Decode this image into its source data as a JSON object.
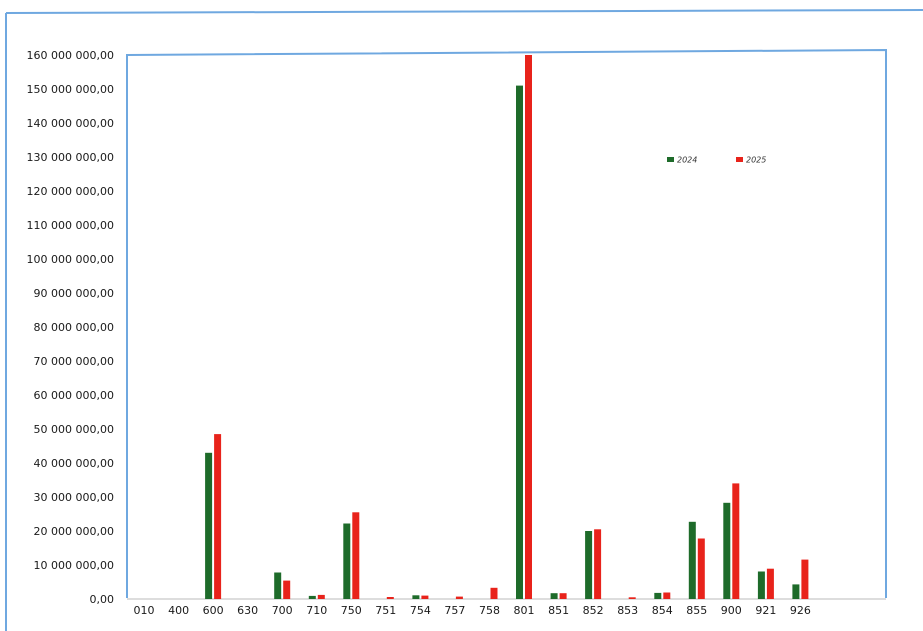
{
  "chart_data": {
    "type": "bar",
    "categories": [
      "010",
      "400",
      "600",
      "630",
      "700",
      "710",
      "750",
      "751",
      "754",
      "757",
      "758",
      "801",
      "851",
      "852",
      "853",
      "854",
      "855",
      "900",
      "921",
      "926"
    ],
    "series": [
      {
        "name": "2024",
        "color": "#1e6b2a",
        "values": [
          0,
          0,
          43000000,
          0,
          7800000,
          900000,
          22200000,
          0,
          1100000,
          0,
          0,
          151000000,
          1700000,
          20000000,
          0,
          1800000,
          22700000,
          28300000,
          8100000,
          4300000
        ]
      },
      {
        "name": "2025",
        "color": "#e8231b",
        "values": [
          0,
          0,
          48500000,
          0,
          5400000,
          1200000,
          25500000,
          600000,
          1000000,
          700000,
          3300000,
          160000000,
          1700000,
          20500000,
          500000,
          1900000,
          17800000,
          34000000,
          8900000,
          11600000
        ]
      }
    ],
    "y_ticks": [
      "0,00",
      "10 000 000,00",
      "20 000 000,00",
      "30 000 000,00",
      "40 000 000,00",
      "50 000 000,00",
      "60 000 000,00",
      "70 000 000,00",
      "80 000 000,00",
      "90 000 000,00",
      "100 000 000,00",
      "110 000 000,00",
      "120 000 000,00",
      "130 000 000,00",
      "140 000 000,00",
      "150 000 000,00",
      "160 000 000,00"
    ],
    "ylim": [
      0,
      160000000
    ],
    "legend_position": "top-right",
    "grid": false,
    "title": "",
    "xlabel": "",
    "ylabel": ""
  },
  "colors": {
    "frame": "#6fa8e0",
    "series_2024": "#1e6b2a",
    "series_2025": "#e8231b"
  }
}
